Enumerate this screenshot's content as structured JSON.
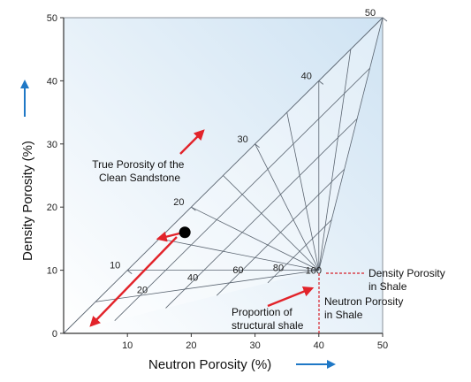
{
  "colors": {
    "arrow": "#e2232a",
    "axis_arrow": "#1f78c6",
    "grid": "#5a6470",
    "dashed": "#d6202a",
    "bg_light": "#ffffff",
    "bg_blue": "#cfe3f3"
  },
  "chart_data": {
    "type": "diagram",
    "xlabel": "Neutron Porosity (%)",
    "ylabel": "Density Porosity (%)",
    "xlim": [
      0,
      50
    ],
    "ylim": [
      0,
      50
    ],
    "x_ticks": [
      "10",
      "20",
      "30",
      "40",
      "50"
    ],
    "y_ticks": [
      "0",
      "10",
      "20",
      "30",
      "40",
      "50"
    ],
    "clean_line_labels": [
      "10",
      "20",
      "30",
      "40",
      "50"
    ],
    "shale_line_labels": [
      "20",
      "40",
      "60",
      "80",
      "100"
    ],
    "shale_point": {
      "x": 40,
      "y": 10
    },
    "data_point": {
      "x": 19,
      "y": 16
    },
    "annotations": {
      "true_porosity": [
        "True Porosity of the",
        "Clean Sandstone"
      ],
      "structural_shale": [
        "Proportion of",
        "structural shale"
      ],
      "density_shale": [
        "Density Porosity",
        "in Shale"
      ],
      "neutron_shale": [
        "Neutron Porosity",
        "in Shale"
      ]
    }
  }
}
